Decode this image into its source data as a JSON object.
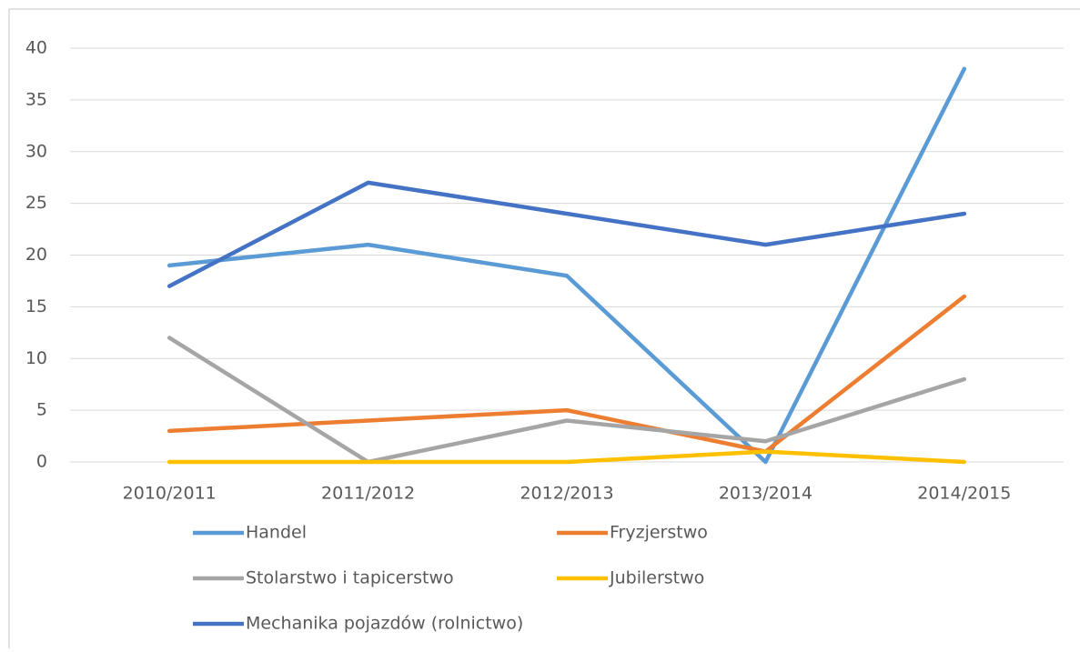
{
  "chart_data": {
    "type": "line",
    "categories": [
      "2010/2011",
      "2011/2012",
      "2012/2013",
      "2013/2014",
      "2014/2015"
    ],
    "series": [
      {
        "name": "Handel",
        "color": "#5b9bd5",
        "values": [
          19,
          21,
          18,
          0,
          38
        ]
      },
      {
        "name": "Fryzjerstwo",
        "color": "#ed7d31",
        "values": [
          3,
          4,
          5,
          1,
          16
        ]
      },
      {
        "name": "Stolarstwo i tapicerstwo",
        "color": "#a5a5a5",
        "values": [
          12,
          0,
          4,
          2,
          8
        ]
      },
      {
        "name": "Jubilerstwo",
        "color": "#ffc000",
        "values": [
          0,
          0,
          0,
          1,
          0
        ]
      },
      {
        "name": "Mechanika pojazdów (rolnictwo)",
        "color": "#4472c4",
        "values": [
          17,
          27,
          24,
          21,
          24
        ]
      }
    ],
    "ylim": [
      0,
      40
    ],
    "yticks": [
      0,
      5,
      10,
      15,
      20,
      25,
      30,
      35,
      40
    ],
    "grid": true,
    "legend": "bottom"
  }
}
